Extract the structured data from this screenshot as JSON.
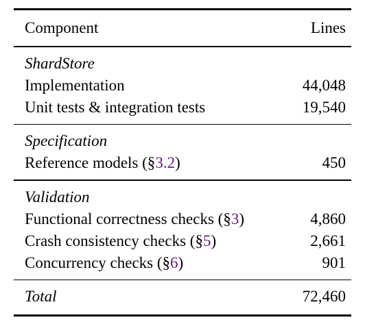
{
  "header": {
    "component": "Component",
    "lines": "Lines"
  },
  "sections": [
    {
      "title": "ShardStore",
      "rows": [
        {
          "label": "Implementation",
          "ref": "",
          "suffix": "",
          "value": "44,048"
        },
        {
          "label": "Unit tests & integration tests",
          "ref": "",
          "suffix": "",
          "value": "19,540"
        }
      ]
    },
    {
      "title": "Specification",
      "rows": [
        {
          "label": "Reference models (§",
          "ref": "3.2",
          "suffix": ")",
          "value": "450"
        }
      ]
    },
    {
      "title": "Validation",
      "rows": [
        {
          "label": "Functional correctness checks (§",
          "ref": "3",
          "suffix": ")",
          "value": "4,860"
        },
        {
          "label": "Crash consistency checks (§",
          "ref": "5",
          "suffix": ")",
          "value": "2,661"
        },
        {
          "label": "Concurrency checks (§",
          "ref": "6",
          "suffix": ")",
          "value": "901"
        }
      ]
    }
  ],
  "total": {
    "label": "Total",
    "value": "72,460"
  },
  "colors": {
    "ref_link": "#6a1b7a",
    "text": "#000000"
  }
}
